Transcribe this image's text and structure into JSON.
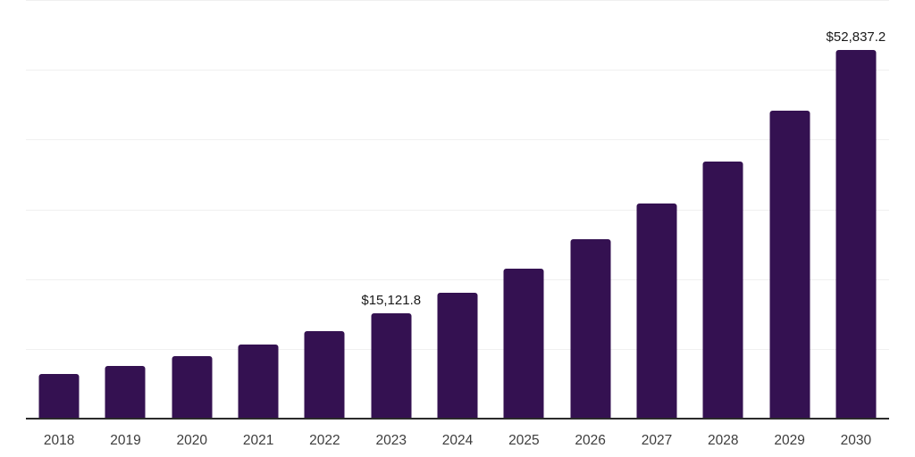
{
  "chart_data": {
    "type": "bar",
    "title": "",
    "xlabel": "",
    "ylabel": "",
    "categories": [
      "2018",
      "2019",
      "2020",
      "2021",
      "2022",
      "2023",
      "2024",
      "2025",
      "2026",
      "2027",
      "2028",
      "2029",
      "2030"
    ],
    "values": [
      6350,
      7540,
      8920,
      10590,
      12550,
      15121.8,
      18030,
      21530,
      25720,
      30820,
      36850,
      44200,
      52837.2
    ],
    "data_labels": {
      "2023": "$15,121.8",
      "2030": "$52,837.2"
    },
    "ylim": [
      0,
      60000
    ],
    "gridline_values": [
      10000,
      20000,
      30000,
      40000,
      50000,
      60000
    ],
    "grid": true,
    "legend": "none",
    "colors": {
      "bar": "#341151",
      "gridline": "#f0f0f0",
      "axis_line": "#2b2b2b",
      "tick_label": "#3d3d3d",
      "data_label": "#1a1a1a",
      "background": "#ffffff"
    }
  }
}
